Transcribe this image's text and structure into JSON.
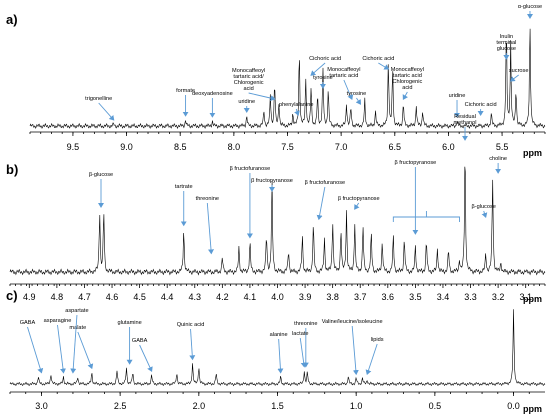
{
  "chart_data": [
    {
      "type": "line",
      "panel": "a)",
      "xlabel": "ppm",
      "xlim": [
        9.9,
        5.1
      ],
      "tick_labels": [
        "9.5",
        "9.0",
        "8.5",
        "8.0",
        "7.5",
        "7.0",
        "6.5",
        "6.0",
        "5.5"
      ],
      "tick_values": [
        9.5,
        9.0,
        8.5,
        8.0,
        7.5,
        7.0,
        6.5,
        6.0,
        5.5
      ],
      "peaks": [
        {
          "ppm": 9.12,
          "h": 0.02
        },
        {
          "ppm": 8.45,
          "h": 0.06
        },
        {
          "ppm": 8.2,
          "h": 0.05
        },
        {
          "ppm": 7.88,
          "h": 0.1
        },
        {
          "ppm": 7.72,
          "h": 0.15
        },
        {
          "ppm": 7.66,
          "h": 0.3
        },
        {
          "ppm": 7.62,
          "h": 0.42
        },
        {
          "ppm": 7.58,
          "h": 0.22
        },
        {
          "ppm": 7.45,
          "h": 0.12
        },
        {
          "ppm": 7.39,
          "h": 0.72
        },
        {
          "ppm": 7.33,
          "h": 0.45
        },
        {
          "ppm": 7.28,
          "h": 0.38
        },
        {
          "ppm": 7.22,
          "h": 0.3
        },
        {
          "ppm": 7.17,
          "h": 0.55
        },
        {
          "ppm": 7.12,
          "h": 0.35
        },
        {
          "ppm": 6.95,
          "h": 0.22
        },
        {
          "ppm": 6.91,
          "h": 0.18
        },
        {
          "ppm": 6.78,
          "h": 0.25
        },
        {
          "ppm": 6.68,
          "h": 0.15
        },
        {
          "ppm": 6.56,
          "h": 0.62
        },
        {
          "ppm": 6.52,
          "h": 0.55
        },
        {
          "ppm": 6.42,
          "h": 0.22
        },
        {
          "ppm": 6.3,
          "h": 0.2
        },
        {
          "ppm": 6.24,
          "h": 0.15
        },
        {
          "ppm": 5.92,
          "h": 0.05
        },
        {
          "ppm": 5.6,
          "h": 0.12
        },
        {
          "ppm": 5.46,
          "h": 0.95
        },
        {
          "ppm": 5.42,
          "h": 0.8
        },
        {
          "ppm": 5.37,
          "h": 0.35
        },
        {
          "ppm": 5.24,
          "h": 1.0
        }
      ],
      "annotations": [
        {
          "text": "trigonelline",
          "ppm": 9.12
        },
        {
          "text": "formate",
          "ppm": 8.45
        },
        {
          "text": "deoxyadenosine",
          "ppm": 8.2
        },
        {
          "text": "uridine",
          "ppm": 7.88
        },
        {
          "text": "Monocaffeoyl tartaric acid/ Chlorogenic acid",
          "ppm": 7.62
        },
        {
          "text": "phenylalanine",
          "ppm": 7.4
        },
        {
          "text": "Cichoric acid",
          "ppm": 7.28
        },
        {
          "text": "tyrosine",
          "ppm": 7.17
        },
        {
          "text": "Cichoric acid",
          "ppm": 6.56
        },
        {
          "text": "Monocaffeoyl tartaric acid",
          "ppm": 6.9
        },
        {
          "text": "tyrosine",
          "ppm": 6.82
        },
        {
          "text": "Monocaffeoyl tartaric acid Chlorogenic acid",
          "ppm": 6.42
        },
        {
          "text": "uridine",
          "ppm": 5.92
        },
        {
          "text": "Cichoric acid",
          "ppm": 5.7
        },
        {
          "text": "Inulin terminal glucose",
          "ppm": 5.46
        },
        {
          "text": "sucrose",
          "ppm": 5.42
        },
        {
          "text": "α-glucose",
          "ppm": 5.24
        }
      ]
    },
    {
      "type": "line",
      "panel": "b)",
      "xlabel": "ppm",
      "xlim": [
        4.97,
        3.03
      ],
      "tick_labels": [
        "4.9",
        "4.8",
        "4.7",
        "4.6",
        "4.5",
        "4.4",
        "4.3",
        "4.2",
        "4.1",
        "4.0",
        "3.9",
        "3.8",
        "3.7",
        "3.6",
        "3.5",
        "3.4",
        "3.3",
        "3.2",
        "3.1"
      ],
      "tick_values": [
        4.9,
        4.8,
        4.7,
        4.6,
        4.5,
        4.4,
        4.3,
        4.2,
        4.1,
        4.0,
        3.9,
        3.8,
        3.7,
        3.6,
        3.5,
        3.4,
        3.3,
        3.2,
        3.1
      ],
      "peaks": [
        {
          "ppm": 4.645,
          "h": 0.5
        },
        {
          "ppm": 4.63,
          "h": 0.5
        },
        {
          "ppm": 4.34,
          "h": 0.35
        },
        {
          "ppm": 4.2,
          "h": 0.12
        },
        {
          "ppm": 4.14,
          "h": 0.2
        },
        {
          "ppm": 4.1,
          "h": 0.25
        },
        {
          "ppm": 4.04,
          "h": 0.3
        },
        {
          "ppm": 4.02,
          "h": 0.78
        },
        {
          "ppm": 3.96,
          "h": 0.18
        },
        {
          "ppm": 3.91,
          "h": 0.3
        },
        {
          "ppm": 3.87,
          "h": 0.4
        },
        {
          "ppm": 3.83,
          "h": 0.28
        },
        {
          "ppm": 3.8,
          "h": 0.42
        },
        {
          "ppm": 3.77,
          "h": 0.35
        },
        {
          "ppm": 3.75,
          "h": 0.5
        },
        {
          "ppm": 3.72,
          "h": 0.4
        },
        {
          "ppm": 3.69,
          "h": 0.38
        },
        {
          "ppm": 3.66,
          "h": 0.32
        },
        {
          "ppm": 3.62,
          "h": 0.25
        },
        {
          "ppm": 3.58,
          "h": 0.3
        },
        {
          "ppm": 3.54,
          "h": 0.28
        },
        {
          "ppm": 3.5,
          "h": 0.22
        },
        {
          "ppm": 3.46,
          "h": 0.26
        },
        {
          "ppm": 3.42,
          "h": 0.2
        },
        {
          "ppm": 3.38,
          "h": 0.18
        },
        {
          "ppm": 3.34,
          "h": 0.1
        },
        {
          "ppm": 3.32,
          "h": 1.05
        },
        {
          "ppm": 3.245,
          "h": 0.15
        },
        {
          "ppm": 3.22,
          "h": 0.78
        },
        {
          "ppm": 3.19,
          "h": 0.08
        }
      ],
      "annotations": [
        {
          "text": "β-glucose",
          "ppm": 4.64
        },
        {
          "text": "tartrate",
          "ppm": 4.34
        },
        {
          "text": "threonine",
          "ppm": 4.24
        },
        {
          "text": "β fructofuranose",
          "ppm": 4.1
        },
        {
          "text": "β fructopyranose",
          "ppm": 4.02
        },
        {
          "text": "β fructofuranose",
          "ppm": 3.85
        },
        {
          "text": "β fructopyranose",
          "ppm": 3.72
        },
        {
          "text": "β fructopyranose",
          "ppm": 3.5
        },
        {
          "text": "Residual methanol",
          "ppm": 3.32
        },
        {
          "text": "β-glucose",
          "ppm": 3.245
        },
        {
          "text": "choline",
          "ppm": 3.2
        }
      ]
    },
    {
      "type": "line",
      "panel": "c)",
      "xlabel": "ppm",
      "xlim": [
        3.2,
        -0.2
      ],
      "tick_labels": [
        "3.0",
        "2.5",
        "2.0",
        "1.5",
        "1.0",
        "0.5",
        "0.0"
      ],
      "tick_values": [
        3.0,
        2.5,
        2.0,
        1.5,
        1.0,
        0.5,
        0.0
      ],
      "peaks": [
        {
          "ppm": 3.02,
          "h": 0.1
        },
        {
          "ppm": 2.94,
          "h": 0.14
        },
        {
          "ppm": 2.86,
          "h": 0.1
        },
        {
          "ppm": 2.77,
          "h": 0.1
        },
        {
          "ppm": 2.68,
          "h": 0.16
        },
        {
          "ppm": 2.52,
          "h": 0.18
        },
        {
          "ppm": 2.46,
          "h": 0.22
        },
        {
          "ppm": 2.42,
          "h": 0.16
        },
        {
          "ppm": 2.3,
          "h": 0.12
        },
        {
          "ppm": 2.14,
          "h": 0.16
        },
        {
          "ppm": 2.04,
          "h": 0.28
        },
        {
          "ppm": 2.0,
          "h": 0.24
        },
        {
          "ppm": 1.89,
          "h": 0.14
        },
        {
          "ppm": 1.48,
          "h": 0.1
        },
        {
          "ppm": 1.33,
          "h": 0.18
        },
        {
          "ppm": 1.31,
          "h": 0.15
        },
        {
          "ppm": 1.05,
          "h": 0.1
        },
        {
          "ppm": 1.0,
          "h": 0.08
        },
        {
          "ppm": 0.96,
          "h": 0.08
        },
        {
          "ppm": 0.93,
          "h": 0.06
        },
        {
          "ppm": 0.0,
          "h": 1.0
        }
      ],
      "annotations": [
        {
          "text": "GABA",
          "ppm": 3.0
        },
        {
          "text": "asparagine",
          "ppm": 2.86
        },
        {
          "text": "malate",
          "ppm": 2.68
        },
        {
          "text": "aspartate",
          "ppm": 2.8
        },
        {
          "text": "glutamine",
          "ppm": 2.44
        },
        {
          "text": "GABA",
          "ppm": 2.3
        },
        {
          "text": "Quinic acid",
          "ppm": 2.04
        },
        {
          "text": "alanine",
          "ppm": 1.48
        },
        {
          "text": "threonine",
          "ppm": 1.32
        },
        {
          "text": "lactate",
          "ppm": 1.33
        },
        {
          "text": "Valine/leucine/isoleucine",
          "ppm": 1.0
        },
        {
          "text": "lipids",
          "ppm": 0.93
        }
      ]
    }
  ]
}
